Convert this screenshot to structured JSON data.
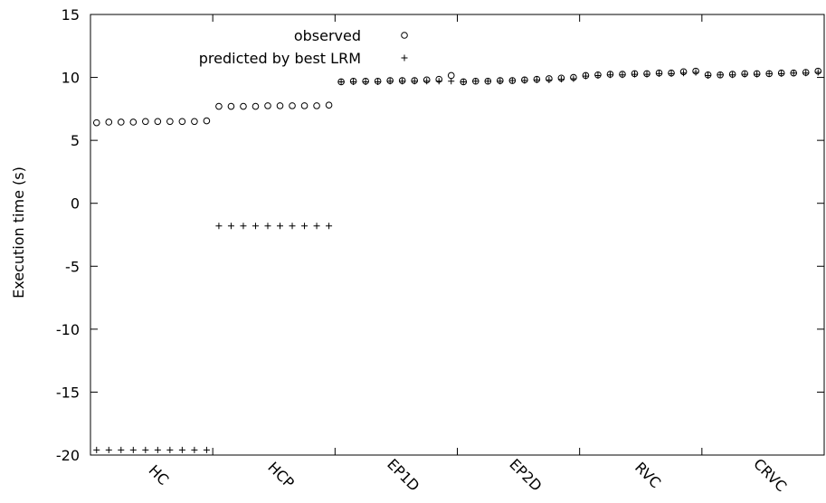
{
  "chart_data": {
    "type": "scatter",
    "ylabel": "Execution time (s)",
    "xlabel": "",
    "ylim": [
      -20,
      15
    ],
    "yticks": [
      -20,
      -15,
      -10,
      -5,
      0,
      5,
      10,
      15
    ],
    "categories": [
      "HC",
      "HCP",
      "EP1D",
      "EP2D",
      "RVC",
      "CRVC"
    ],
    "points_per_category": 10,
    "legend_position": "top-center",
    "grid": false,
    "series": [
      {
        "name": "observed",
        "marker": "circle",
        "values": [
          6.4,
          6.45,
          6.45,
          6.45,
          6.5,
          6.5,
          6.5,
          6.5,
          6.5,
          6.55,
          7.7,
          7.7,
          7.7,
          7.7,
          7.75,
          7.75,
          7.75,
          7.75,
          7.75,
          7.8,
          9.65,
          9.7,
          9.7,
          9.7,
          9.75,
          9.75,
          9.75,
          9.8,
          9.85,
          10.15,
          9.65,
          9.7,
          9.7,
          9.75,
          9.75,
          9.8,
          9.85,
          9.9,
          9.95,
          10.0,
          10.15,
          10.2,
          10.25,
          10.25,
          10.3,
          10.3,
          10.35,
          10.35,
          10.45,
          10.5,
          10.2,
          10.2,
          10.25,
          10.3,
          10.3,
          10.3,
          10.35,
          10.35,
          10.4,
          10.5
        ]
      },
      {
        "name": "predicted by best LRM",
        "marker": "plus",
        "values": [
          -19.6,
          -19.6,
          -19.6,
          -19.6,
          -19.6,
          -19.6,
          -19.6,
          -19.6,
          -19.6,
          -19.6,
          -1.8,
          -1.8,
          -1.8,
          -1.8,
          -1.8,
          -1.8,
          -1.8,
          -1.8,
          -1.8,
          -1.8,
          9.65,
          9.65,
          9.65,
          9.65,
          9.7,
          9.7,
          9.7,
          9.7,
          9.7,
          9.7,
          9.65,
          9.7,
          9.7,
          9.7,
          9.75,
          9.75,
          9.8,
          9.8,
          9.85,
          9.9,
          10.1,
          10.15,
          10.2,
          10.2,
          10.25,
          10.25,
          10.3,
          10.3,
          10.35,
          10.4,
          10.15,
          10.2,
          10.2,
          10.25,
          10.25,
          10.3,
          10.3,
          10.35,
          10.35,
          10.4
        ]
      }
    ]
  }
}
